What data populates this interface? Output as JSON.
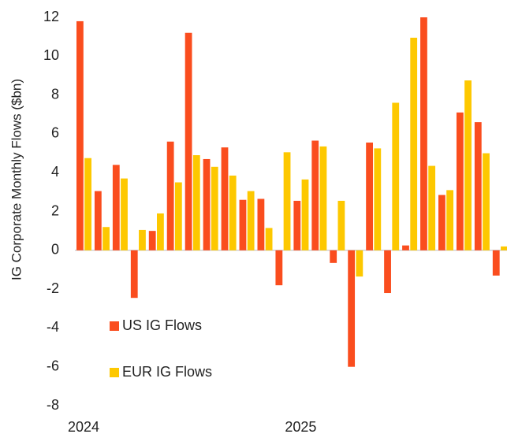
{
  "chart_data": {
    "type": "bar",
    "y_label": "IG Corporate Monthly Flows ($bn)",
    "categories": [
      "2024",
      null,
      null,
      null,
      null,
      null,
      null,
      null,
      null,
      null,
      null,
      null,
      "2025",
      null,
      null,
      null,
      null,
      null,
      null,
      null,
      null,
      null,
      null,
      null
    ],
    "series": [
      {
        "name": "US IG Flows",
        "color": "#fa4d1e",
        "values": [
          11.8,
          3.05,
          4.4,
          -2.45,
          1.0,
          5.6,
          11.2,
          4.7,
          5.3,
          2.6,
          2.65,
          -1.8,
          2.55,
          5.65,
          -0.65,
          -6.0,
          5.55,
          -2.2,
          0.25,
          12.0,
          2.85,
          7.1,
          6.6,
          -1.3
        ]
      },
      {
        "name": "EUR IG Flows",
        "color": "#fdc800",
        "values": [
          4.75,
          1.2,
          3.7,
          1.05,
          1.9,
          3.5,
          4.9,
          4.3,
          3.85,
          3.05,
          1.15,
          5.05,
          3.65,
          5.35,
          2.55,
          -1.35,
          5.25,
          7.6,
          10.95,
          4.35,
          3.1,
          8.75,
          5.0,
          0.2
        ]
      }
    ],
    "ylim": [
      -8,
      12
    ],
    "yticks": [
      -8,
      -6,
      -4,
      -2,
      0,
      2,
      4,
      6,
      8,
      10,
      12
    ],
    "grid": false,
    "legend": "lower left"
  }
}
